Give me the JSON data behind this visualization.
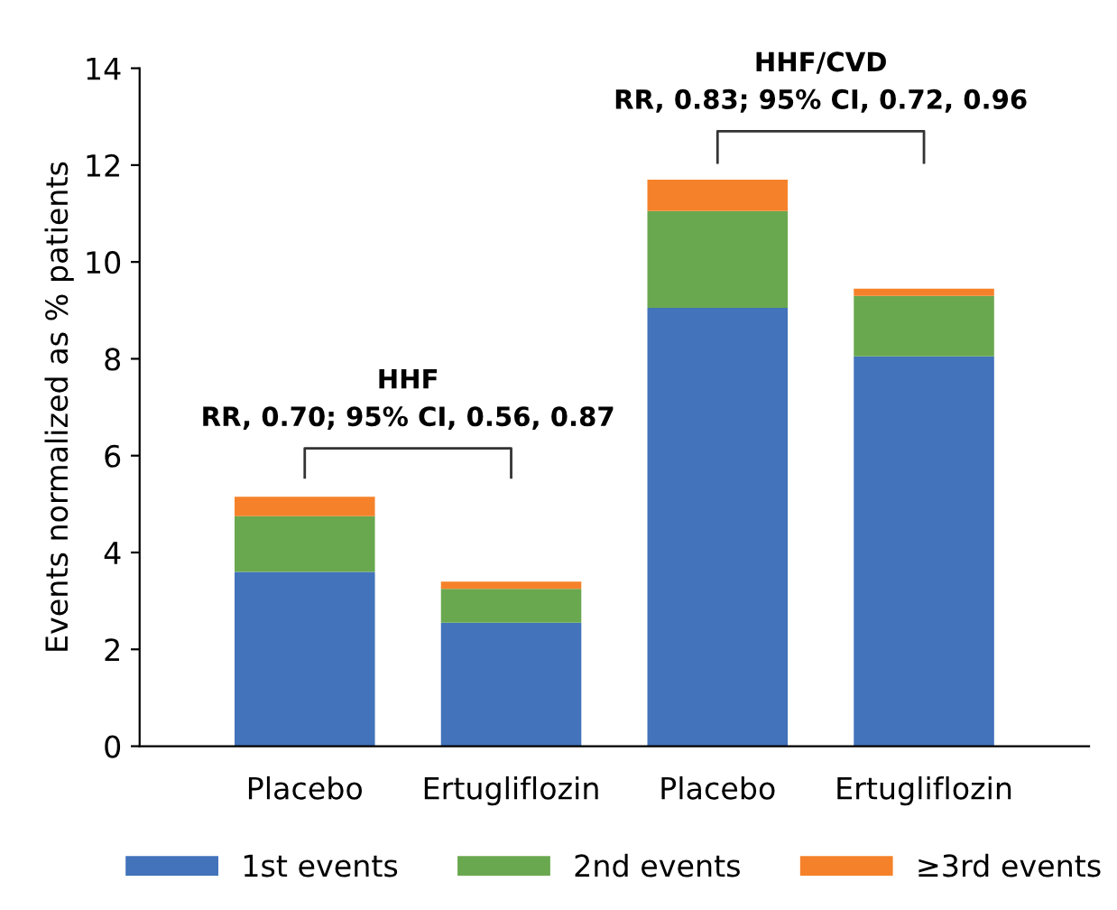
{
  "chart_data": {
    "type": "bar",
    "stacked": true,
    "ylabel": "Events normalized as % patients",
    "categories": [
      "Placebo",
      "Ertugliflozin",
      "Placebo",
      "Ertugliflozin"
    ],
    "series": [
      {
        "name": "1st events",
        "color": "#4273bb",
        "values": [
          3.6,
          2.55,
          9.05,
          8.05
        ]
      },
      {
        "name": "2nd events",
        "color": "#6aa84f",
        "values": [
          1.15,
          0.7,
          2.0,
          1.25
        ]
      },
      {
        "name": "≥3rd events",
        "color": "#f5822a",
        "values": [
          0.4,
          0.15,
          0.65,
          0.15
        ]
      }
    ],
    "ylim": [
      0,
      14
    ],
    "yticks": [
      0,
      2,
      4,
      6,
      8,
      10,
      12,
      14
    ],
    "grid": false,
    "legend": "bottom",
    "annotations": [
      "HHF\nRR, 0.70; 95% CI, 0.56, 0.87",
      "HHF/CVD\nRR, 0.83; 95% CI, 0.72, 0.96"
    ]
  }
}
